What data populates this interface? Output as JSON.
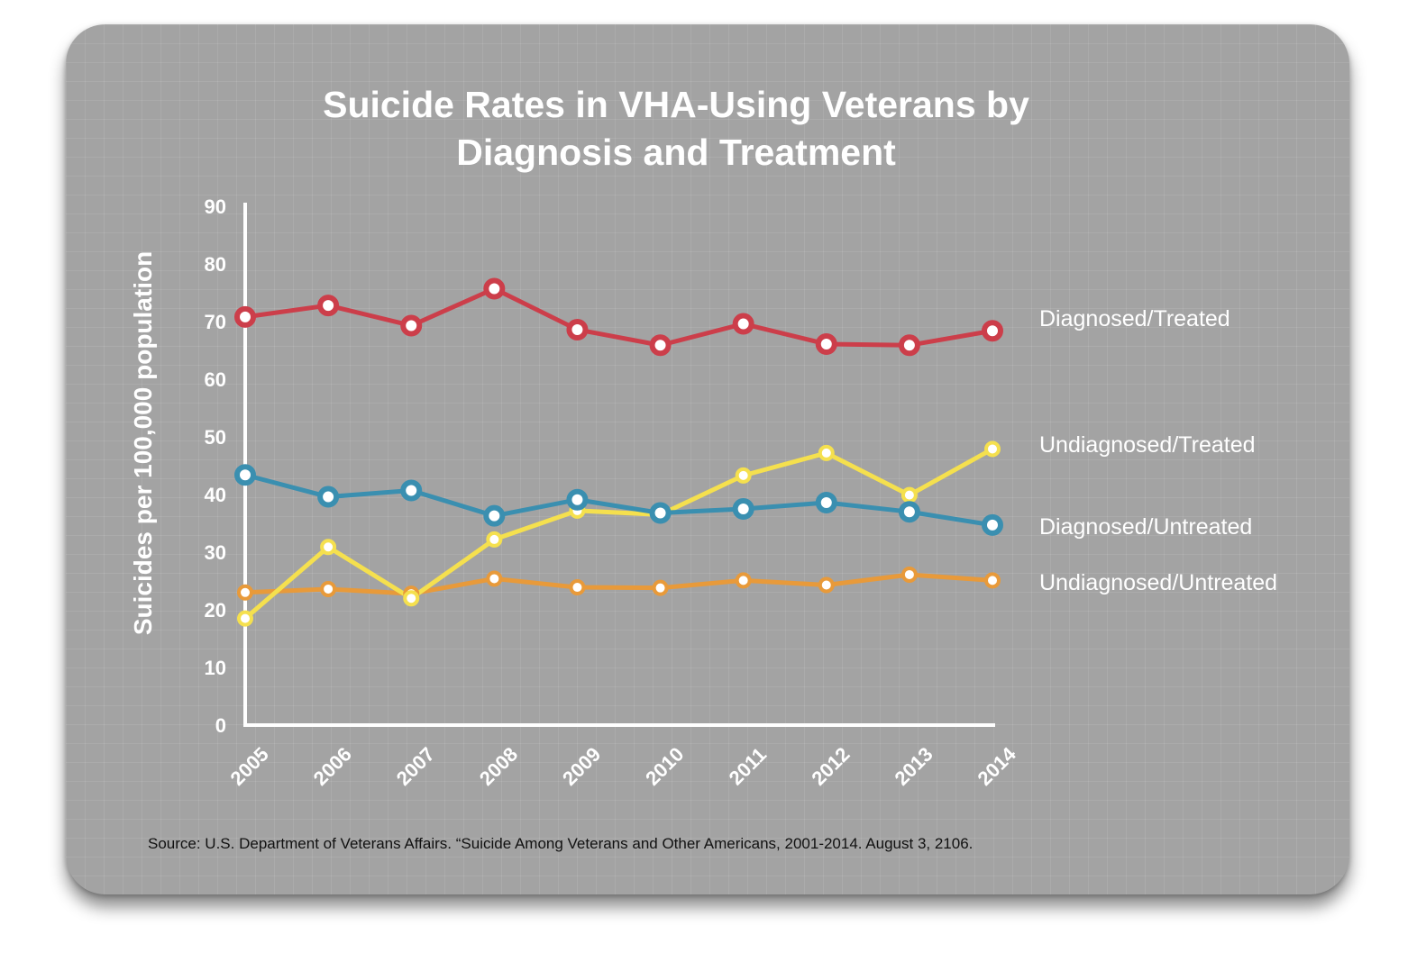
{
  "chart_data": {
    "type": "line",
    "title": "Suicide Rates in VHA-Using Veterans by Diagnosis and Treatment",
    "title_lines": [
      "Suicide Rates in VHA-Using Veterans by",
      "Diagnosis and Treatment"
    ],
    "ylabel": "Suicides per 100,000 population",
    "xlabel": "",
    "x": [
      "2005",
      "2006",
      "2007",
      "2008",
      "2009",
      "2010",
      "2011",
      "2012",
      "2013",
      "2014"
    ],
    "ylim": [
      0,
      90
    ],
    "yticks": [
      "0",
      "10",
      "20",
      "30",
      "40",
      "50",
      "60",
      "70",
      "80",
      "90"
    ],
    "grid": false,
    "legend": "inline labels at right end of each line",
    "series": [
      {
        "name": "Diagnosed/Treated",
        "color": "#cc3e4a",
        "values": [
          70.8,
          72.8,
          69.3,
          75.7,
          68.6,
          65.9,
          69.6,
          66.1,
          65.9,
          68.4
        ]
      },
      {
        "name": "Undiagnosed/Treated",
        "color": "#f5e04e",
        "values": [
          18.5,
          30.9,
          22.0,
          32.2,
          37.2,
          36.5,
          43.3,
          47.2,
          39.9,
          47.9
        ]
      },
      {
        "name": "Diagnosed/Untreated",
        "color": "#3a8fb0",
        "values": [
          43.4,
          39.6,
          40.7,
          36.3,
          39.1,
          36.8,
          37.5,
          38.6,
          37.0,
          34.7
        ]
      },
      {
        "name": "Undiagnosed/Untreated",
        "color": "#e89a3a",
        "values": [
          23.0,
          23.6,
          22.8,
          25.4,
          23.9,
          23.8,
          25.1,
          24.3,
          26.1,
          25.1
        ]
      }
    ]
  },
  "source": "Source: U.S. Department of Veterans Affairs. “Suicide Among Veterans and Other Americans, 2001-2014. August 3, 2106.",
  "colors": {
    "background": "#a3a3a3",
    "axis": "#ffffff",
    "text": "#ffffff"
  }
}
